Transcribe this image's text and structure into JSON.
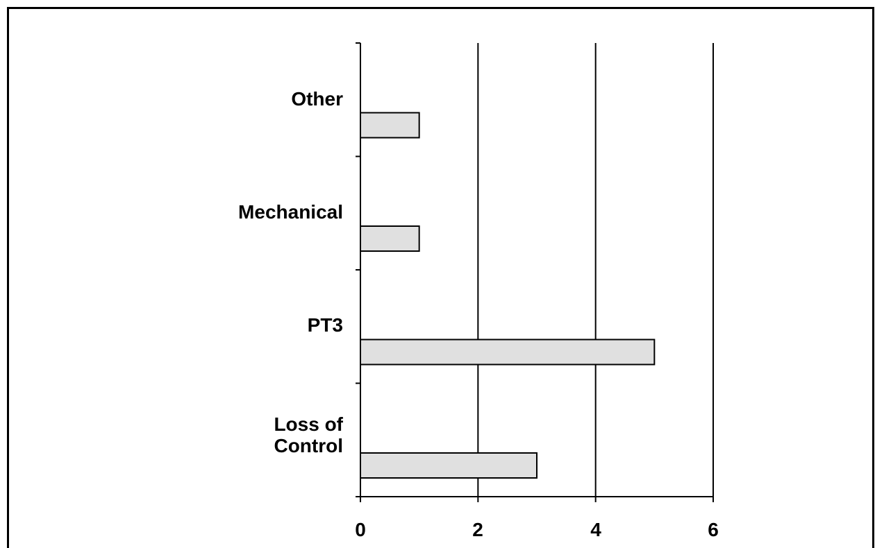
{
  "chart_data": {
    "type": "bar",
    "orientation": "horizontal",
    "categories": [
      "Loss of\nControl",
      "PT3",
      "Mechanical",
      "Other"
    ],
    "values": [
      3,
      5,
      1,
      1
    ],
    "title": "",
    "xlabel": "",
    "ylabel": "",
    "xlim": [
      0,
      6
    ],
    "x_ticks": [
      "0",
      "2",
      "4",
      "6"
    ],
    "grid": "vertical",
    "legend": "none",
    "colors": {
      "bar_fill": "#e0e0e0",
      "bar_stroke": "#000000",
      "grid": "#000000",
      "frame": "#000000"
    }
  }
}
